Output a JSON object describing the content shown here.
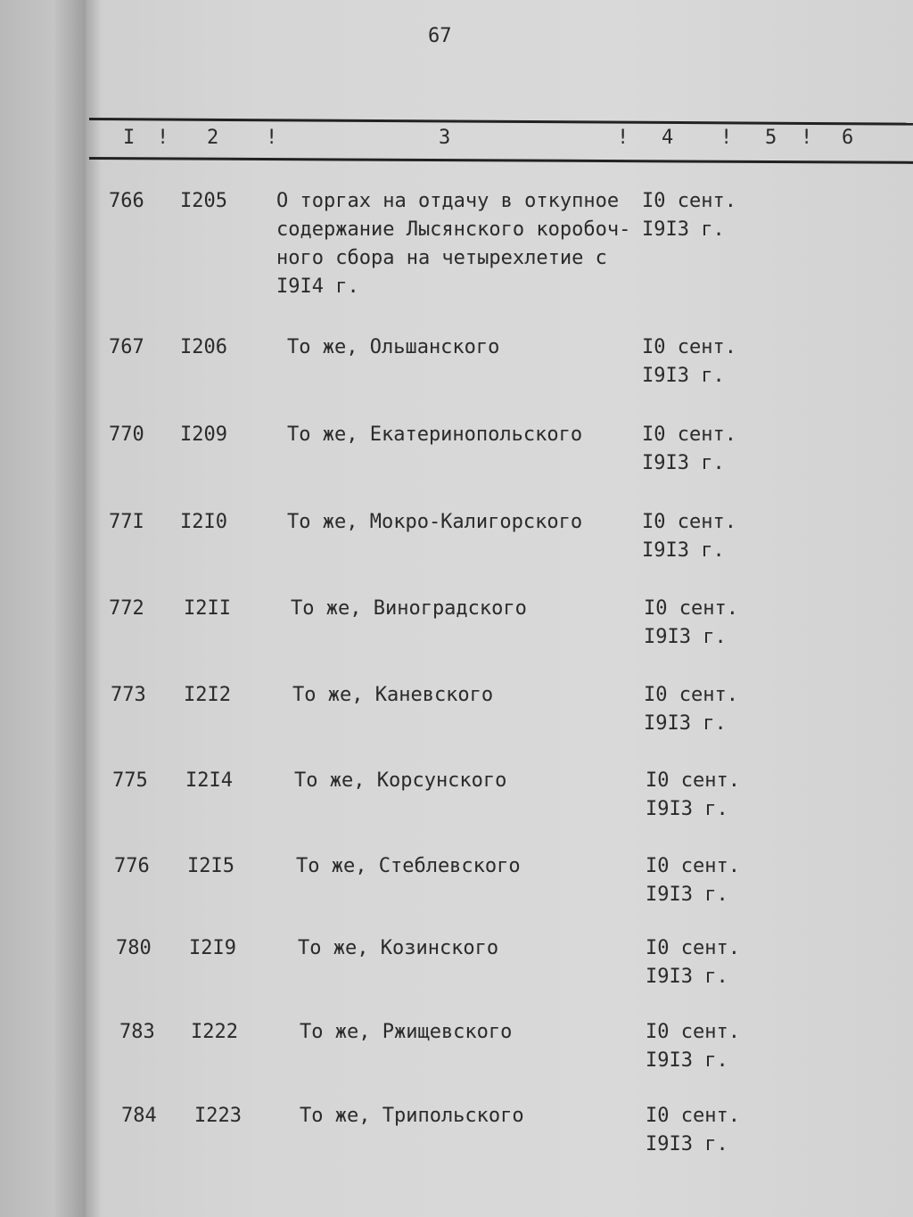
{
  "page_number": "67",
  "header": {
    "columns": [
      "I",
      "2",
      "3",
      "4",
      "5",
      "6"
    ],
    "separators": "!"
  },
  "rows": [
    {
      "col1": "766",
      "col2": "I205",
      "col3": "О торгах на отдачу в откупное\nсодержание Лысянского коробоч-\nного сбора на четырехлетие с\nI9I4 г.",
      "col4": "I0 сент.\nI9I3 г."
    },
    {
      "col1": "767",
      "col2": "I206",
      "col3": "То же, Ольшанского",
      "col4": "I0 сент.\nI9I3 г."
    },
    {
      "col1": "770",
      "col2": "I209",
      "col3": "То же, Екатеринопольского",
      "col4": "I0 сент.\nI9I3 г."
    },
    {
      "col1": "77I",
      "col2": "I2I0",
      "col3": "То же, Мокро-Калигорского",
      "col4": "I0 сент.\nI9I3 г."
    },
    {
      "col1": "772",
      "col2": "I2II",
      "col3": "То же, Виноградского",
      "col4": "I0 сент.\nI9I3 г."
    },
    {
      "col1": "773",
      "col2": "I2I2",
      "col3": "То же, Каневского",
      "col4": "I0 сент.\nI9I3 г."
    },
    {
      "col1": "775",
      "col2": "I2I4",
      "col3": "То же, Корсунского",
      "col4": "I0 сент.\nI9I3 г."
    },
    {
      "col1": "776",
      "col2": "I2I5",
      "col3": "То же, Стеблевского",
      "col4": "I0 сент.\nI9I3 г."
    },
    {
      "col1": "780",
      "col2": "I2I9",
      "col3": "То же, Козинского",
      "col4": "I0 сент.\nI9I3 г."
    },
    {
      "col1": "783",
      "col2": "I222",
      "col3": "То же, Ржищевского",
      "col4": "I0 сент.\nI9I3 г."
    },
    {
      "col1": "784",
      "col2": "I223",
      "col3": "То же, Трипольского",
      "col4": "I0 сент.\nI9I3 г."
    }
  ]
}
